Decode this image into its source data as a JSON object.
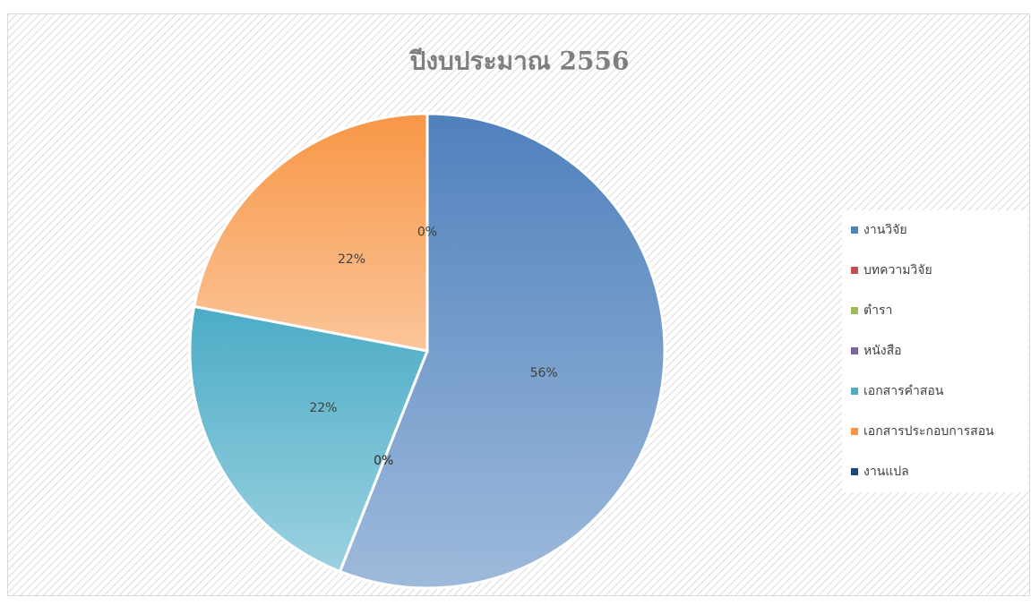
{
  "chart_data": {
    "type": "pie",
    "title": "ปีงบประมาณ 2556",
    "categories": [
      "งานวิจัย",
      "บทความวิจัย",
      "ตำรา",
      "หนังสือ",
      "เอกสารคำสอน",
      "เอกสารประกอบการสอน",
      "งานแปล"
    ],
    "values": [
      56,
      0,
      0,
      0,
      22,
      22,
      0
    ],
    "value_labels": [
      "56%",
      "0%",
      "0%",
      "0%",
      "22%",
      "22%",
      "0%"
    ],
    "colors": [
      "#4f81bd",
      "#c0504d",
      "#9bbb59",
      "#8064a2",
      "#4bacc6",
      "#f79646",
      "#1f497d"
    ],
    "legend": "right"
  }
}
